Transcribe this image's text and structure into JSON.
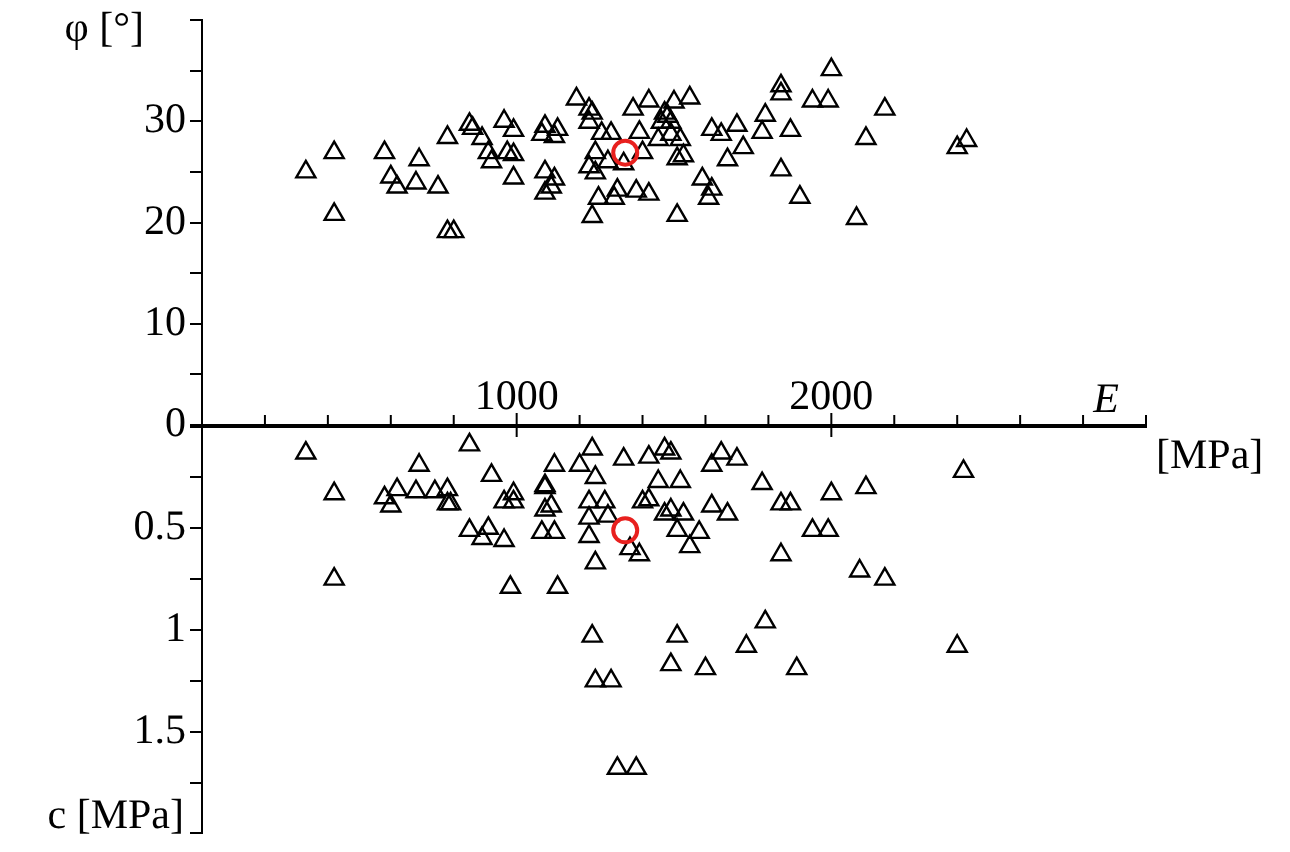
{
  "chart_data": [
    {
      "type": "scatter",
      "xlabel": "E [MPa]",
      "ylabel": "φ [°]",
      "xlim": [
        0,
        3000
      ],
      "xticks": [
        {
          "value": 200,
          "label": null
        },
        {
          "value": 400,
          "label": null
        },
        {
          "value": 600,
          "label": null
        },
        {
          "value": 800,
          "label": null
        },
        1000,
        {
          "value": 1200,
          "label": null
        },
        {
          "value": 1400,
          "label": null
        },
        {
          "value": 1600,
          "label": null
        },
        {
          "value": 1800,
          "label": null
        },
        2000,
        {
          "value": 2200,
          "label": null
        },
        {
          "value": 2400,
          "label": null
        },
        {
          "value": 2600,
          "label": null
        },
        {
          "value": 2800,
          "label": null
        },
        {
          "value": 3000,
          "label": null
        }
      ],
      "ylim": [
        0,
        40
      ],
      "yticks": [
        0,
        {
          "value": 5,
          "label": null
        },
        10,
        {
          "value": 15,
          "label": null
        },
        20,
        {
          "value": 25,
          "label": null
        },
        30,
        {
          "value": 35,
          "label": null
        },
        {
          "value": 40,
          "label": null
        }
      ],
      "series": [
        {
          "color": "#000000",
          "marker": "triangle",
          "x": [
            330,
            420,
            420,
            580,
            600,
            620,
            680,
            690,
            750,
            780,
            780,
            800,
            850,
            860,
            890,
            910,
            920,
            960,
            970,
            990,
            990,
            990,
            1090,
            1080,
            1130,
            1120,
            1090,
            1120,
            1110,
            1090,
            1190,
            1230,
            1240,
            1230,
            1270,
            1300,
            1250,
            1290,
            1230,
            1250,
            1260,
            1240,
            1310,
            1320,
            1340,
            1370,
            1390,
            1380,
            1400,
            1420,
            1420,
            1450,
            1470,
            1480,
            1460,
            1490,
            1500,
            1550,
            1490,
            1520,
            1510,
            1530,
            1510,
            1590,
            1620,
            1610,
            1620,
            1650,
            1700,
            1670,
            1720,
            1780,
            1790,
            1840,
            1840,
            1840,
            1870,
            1900,
            1940,
            1990,
            2000,
            2080,
            2110,
            2170,
            2400,
            2430
          ],
          "values": [
            25.0,
            26.9,
            20.8,
            26.9,
            24.5,
            23.5,
            23.9,
            26.2,
            23.5,
            28.4,
            19.1,
            19.1,
            29.7,
            29.3,
            28.3,
            26.9,
            26.0,
            30.0,
            26.9,
            26.7,
            29.1,
            24.4,
            29.5,
            28.7,
            29.2,
            28.5,
            25.0,
            24.3,
            23.5,
            22.9,
            32.2,
            31.2,
            30.8,
            29.9,
            28.8,
            28.8,
            26.9,
            26.0,
            25.5,
            24.9,
            22.4,
            20.6,
            22.4,
            23.2,
            25.8,
            31.2,
            28.9,
            23.1,
            26.9,
            32.0,
            22.8,
            28.2,
            30.8,
            30.5,
            29.9,
            29.9,
            31.9,
            32.3,
            28.7,
            28.2,
            26.3,
            26.6,
            20.7,
            24.3,
            23.3,
            22.4,
            29.2,
            28.7,
            29.6,
            26.2,
            27.4,
            28.9,
            30.6,
            25.2,
            33.5,
            32.7,
            29.1,
            22.5,
            32.0,
            32.0,
            35.1,
            20.4,
            28.3,
            31.2,
            27.4,
            28.1
          ]
        },
        {
          "color": "#e8201e",
          "marker": "circle",
          "x": [
            1345
          ],
          "values": [
            26.9
          ]
        }
      ]
    },
    {
      "type": "scatter",
      "ylabel": "c [MPa]",
      "tick_labels": "y",
      "xlim": [
        0,
        3000
      ],
      "ylim": [
        2,
        0
      ],
      "yticks": [
        {
          "value": 0,
          "label": null
        },
        {
          "value": 0.25,
          "label": null
        },
        0.5,
        {
          "value": 0.75,
          "label": null
        },
        1,
        {
          "value": 1.25,
          "label": null
        },
        1.5,
        {
          "value": 1.75,
          "label": null
        },
        {
          "value": 2,
          "label": null
        }
      ],
      "series": [
        {
          "color": "#000000",
          "marker": "triangle",
          "x": [
            330,
            420,
            420,
            580,
            600,
            620,
            680,
            690,
            740,
            780,
            780,
            790,
            850,
            920,
            850,
            890,
            910,
            960,
            960,
            990,
            990,
            980,
            1090,
            1090,
            1090,
            1110,
            1120,
            1080,
            1120,
            1130,
            1200,
            1240,
            1250,
            1230,
            1280,
            1230,
            1290,
            1230,
            1250,
            1360,
            1390,
            1340,
            1420,
            1470,
            1490,
            1450,
            1520,
            1400,
            1420,
            1470,
            1490,
            1510,
            1240,
            1510,
            1490,
            1250,
            1300,
            1320,
            1380,
            1650,
            1700,
            1620,
            1780,
            1530,
            1620,
            1670,
            1840,
            1870,
            2000,
            2110,
            2420,
            1580,
            1550,
            1840,
            1940,
            1990,
            2090,
            2170,
            1600,
            1730,
            1790,
            1890,
            2400
          ],
          "values": [
            0.13,
            0.33,
            0.75,
            0.35,
            0.39,
            0.31,
            0.32,
            0.19,
            0.32,
            0.31,
            0.38,
            0.38,
            0.09,
            0.24,
            0.51,
            0.55,
            0.5,
            0.56,
            0.37,
            0.37,
            0.33,
            0.79,
            0.29,
            0.3,
            0.41,
            0.39,
            0.19,
            0.52,
            0.52,
            0.79,
            0.19,
            0.11,
            0.25,
            0.37,
            0.37,
            0.45,
            0.44,
            0.54,
            0.67,
            0.6,
            0.63,
            0.16,
            0.15,
            0.11,
            0.13,
            0.27,
            0.27,
            0.37,
            0.36,
            0.43,
            0.41,
            0.51,
            1.03,
            1.03,
            1.17,
            1.25,
            1.25,
            1.68,
            1.68,
            0.13,
            0.16,
            0.19,
            0.28,
            0.43,
            0.39,
            0.43,
            0.38,
            0.38,
            0.33,
            0.3,
            0.22,
            0.52,
            0.59,
            0.63,
            0.51,
            0.51,
            0.71,
            0.75,
            1.19,
            1.08,
            0.96,
            1.19,
            1.08
          ]
        },
        {
          "color": "#e8201e",
          "marker": "circle",
          "x": [
            1345
          ],
          "values": [
            0.51
          ]
        }
      ]
    }
  ]
}
